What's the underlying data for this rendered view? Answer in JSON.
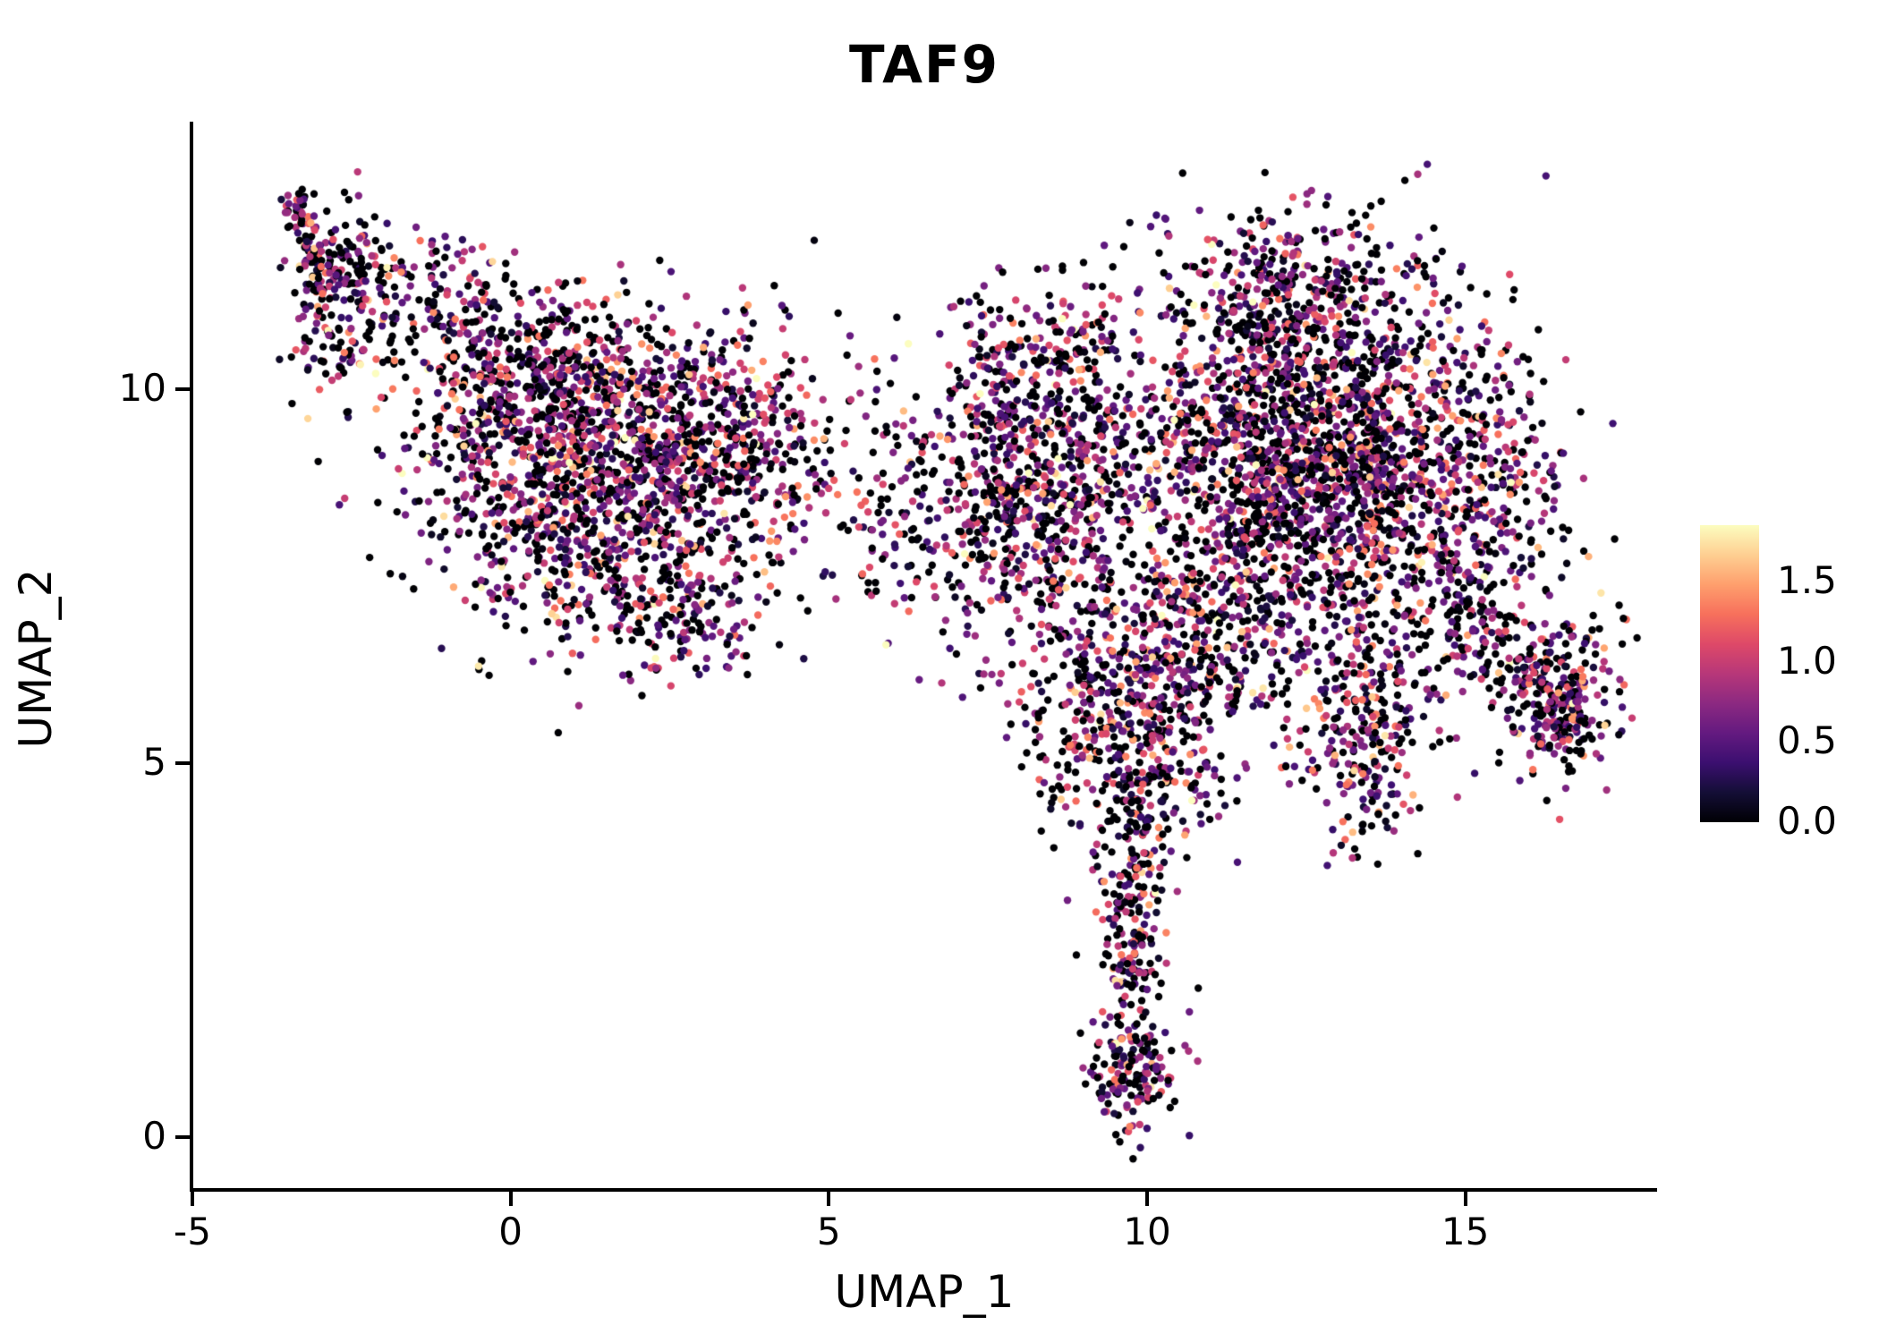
{
  "title": "TAF9",
  "axes": {
    "xlabel": "UMAP_1",
    "ylabel": "UMAP_2",
    "x_ticks": [
      {
        "value": -5,
        "label": "-5"
      },
      {
        "value": 0,
        "label": "0"
      },
      {
        "value": 5,
        "label": "5"
      },
      {
        "value": 10,
        "label": "10"
      },
      {
        "value": 15,
        "label": "15"
      }
    ],
    "y_ticks": [
      {
        "value": 0,
        "label": "0"
      },
      {
        "value": 5,
        "label": "5"
      },
      {
        "value": 10,
        "label": "10"
      }
    ]
  },
  "colorbar": {
    "max_value": 1.85,
    "ticks": [
      {
        "value": 1.5,
        "label": "1.5"
      },
      {
        "value": 1.0,
        "label": "1.0"
      },
      {
        "value": 0.5,
        "label": "0.5"
      },
      {
        "value": 0.0,
        "label": "0.0"
      }
    ]
  },
  "chart_data": {
    "type": "scatter",
    "title": "TAF9",
    "xlabel": "UMAP_1",
    "ylabel": "UMAP_2",
    "xlim": [
      -5,
      18.0
    ],
    "ylim": [
      -0.68,
      13.57
    ],
    "x_tick_values": [
      -5,
      0,
      5,
      10,
      15
    ],
    "y_tick_values": [
      0,
      5,
      10
    ],
    "grid": false,
    "legend_position": "right-colorbar",
    "point_radius_px": 4.2,
    "seed": 42,
    "color_scale": {
      "name": "magma",
      "domain": [
        0,
        1.85
      ],
      "legend_tick_values": [
        0.0,
        0.5,
        1.0,
        1.5
      ],
      "stops": [
        {
          "t": 0.0,
          "color": "#000004"
        },
        {
          "t": 0.1,
          "color": "#140e36"
        },
        {
          "t": 0.2,
          "color": "#3b0f70"
        },
        {
          "t": 0.3,
          "color": "#641a80"
        },
        {
          "t": 0.4,
          "color": "#8c2981"
        },
        {
          "t": 0.5,
          "color": "#b73779"
        },
        {
          "t": 0.6,
          "color": "#de4968"
        },
        {
          "t": 0.7,
          "color": "#f7705c"
        },
        {
          "t": 0.8,
          "color": "#fe9f6d"
        },
        {
          "t": 0.9,
          "color": "#fecf92"
        },
        {
          "t": 1.0,
          "color": "#fcfdbf"
        }
      ]
    },
    "value_distribution": {
      "p_zero": 0.36,
      "mean": 0.7,
      "sd": 0.5,
      "min": 0.04,
      "max": 1.85
    },
    "clusters": [
      {
        "name": "left-tail-tip",
        "type": "strip",
        "x1": -3.35,
        "y1": 12.65,
        "x2": -3.0,
        "y2": 11.3,
        "w": 0.12,
        "n": 80
      },
      {
        "name": "left-tail-spread",
        "type": "gauss",
        "cx": -2.7,
        "cy": 11.1,
        "sx": 0.45,
        "sy": 0.65,
        "n": 160
      },
      {
        "name": "left-upper-band",
        "type": "strip",
        "x1": -2.9,
        "y1": 11.7,
        "x2": -0.2,
        "y2": 10.9,
        "w": 0.45,
        "n": 170
      },
      {
        "name": "left-main-blob",
        "type": "gauss",
        "cx": 1.2,
        "cy": 8.8,
        "sx": 1.35,
        "sy": 1.05,
        "rot": -12,
        "n": 1350
      },
      {
        "name": "left-upper-blob",
        "type": "gauss",
        "cx": 0.4,
        "cy": 10.15,
        "sx": 1.0,
        "sy": 0.5,
        "n": 300
      },
      {
        "name": "left-right-lobe",
        "type": "gauss",
        "cx": 3.3,
        "cy": 9.4,
        "sx": 0.85,
        "sy": 0.75,
        "n": 380
      },
      {
        "name": "left-lower-wisp",
        "type": "gauss",
        "cx": 2.8,
        "cy": 6.95,
        "sx": 0.6,
        "sy": 0.38,
        "n": 110
      },
      {
        "name": "bridge-sparse",
        "type": "gauss",
        "cx": 5.9,
        "cy": 8.6,
        "sx": 1.1,
        "sy": 1.0,
        "n": 150
      },
      {
        "name": "mid-cluster",
        "type": "gauss",
        "cx": 8.3,
        "cy": 8.5,
        "sx": 0.95,
        "sy": 1.05,
        "n": 700
      },
      {
        "name": "mid-top-arc",
        "type": "strip",
        "x1": 7.3,
        "y1": 10.3,
        "x2": 9.4,
        "y2": 10.9,
        "w": 0.45,
        "n": 120
      },
      {
        "name": "mid-upper-sparse",
        "type": "gauss",
        "cx": 8.0,
        "cy": 9.9,
        "sx": 1.3,
        "sy": 0.55,
        "n": 90
      },
      {
        "name": "right-main-cluster",
        "type": "gauss",
        "cx": 12.6,
        "cy": 8.9,
        "sx": 1.55,
        "sy": 1.35,
        "rot": 8,
        "n": 2400
      },
      {
        "name": "right-top-cap",
        "type": "gauss",
        "cx": 12.1,
        "cy": 11.3,
        "sx": 1.05,
        "sy": 0.55,
        "n": 280
      },
      {
        "name": "right-east-edge",
        "type": "gauss",
        "cx": 15.2,
        "cy": 8.4,
        "sx": 0.6,
        "sy": 1.05,
        "n": 220
      },
      {
        "name": "southeast-arm",
        "type": "strip",
        "x1": 14.7,
        "y1": 7.0,
        "x2": 16.7,
        "y2": 5.6,
        "w": 0.3,
        "n": 150
      },
      {
        "name": "southeast-blob",
        "type": "gauss",
        "cx": 16.55,
        "cy": 5.8,
        "sx": 0.45,
        "sy": 0.55,
        "n": 210
      },
      {
        "name": "hanging-blob",
        "type": "gauss",
        "cx": 13.4,
        "cy": 5.4,
        "sx": 0.42,
        "sy": 0.75,
        "n": 230
      },
      {
        "name": "mid-right-gap",
        "type": "gauss",
        "cx": 10.7,
        "cy": 6.4,
        "sx": 0.7,
        "sy": 0.8,
        "n": 170
      },
      {
        "name": "tail-upper",
        "type": "gauss",
        "cx": 9.9,
        "cy": 5.6,
        "sx": 0.75,
        "sy": 0.85,
        "n": 360
      },
      {
        "name": "tail-west-sparse",
        "type": "gauss",
        "cx": 8.85,
        "cy": 5.4,
        "sx": 0.5,
        "sy": 0.8,
        "n": 90
      },
      {
        "name": "tail-stem",
        "type": "strip",
        "x1": 9.95,
        "y1": 4.9,
        "x2": 9.65,
        "y2": 2.0,
        "w": 0.26,
        "n": 230
      },
      {
        "name": "tail-foot",
        "type": "gauss",
        "cx": 9.8,
        "cy": 1.0,
        "sx": 0.35,
        "sy": 0.42,
        "n": 170
      }
    ]
  }
}
